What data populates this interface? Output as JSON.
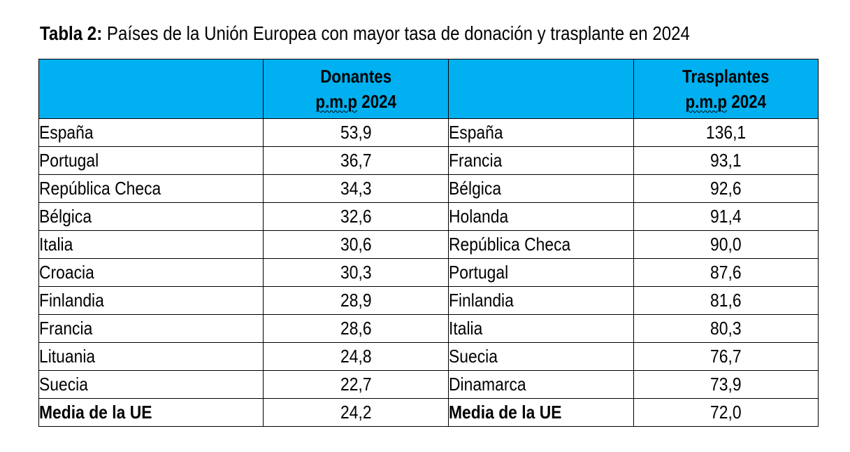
{
  "caption": {
    "label": "Tabla 2:",
    "text": "Países de la Unión Europea con mayor tasa de donación y trasplante en 2024"
  },
  "table": {
    "headers": {
      "donors_line1": "Donantes",
      "donors_abbr": "p.m.p",
      "donors_year": "2024",
      "transplants_line1": "Trasplantes",
      "transplants_abbr": "p.m.p",
      "transplants_year": "2024"
    },
    "header_color": "#00b0f0",
    "rows": [
      {
        "donor_country": "España",
        "donors": "53,9",
        "transplant_country": "España",
        "transplants": "136,1"
      },
      {
        "donor_country": "Portugal",
        "donors": "36,7",
        "transplant_country": "Francia",
        "transplants": "93,1"
      },
      {
        "donor_country": "República Checa",
        "donors": "34,3",
        "transplant_country": "Bélgica",
        "transplants": "92,6"
      },
      {
        "donor_country": "Bélgica",
        "donors": "32,6",
        "transplant_country": "Holanda",
        "transplants": "91,4"
      },
      {
        "donor_country": "Italia",
        "donors": "30,6",
        "transplant_country": "República Checa",
        "transplants": "90,0"
      },
      {
        "donor_country": "Croacia",
        "donors": "30,3",
        "transplant_country": "Portugal",
        "transplants": "87,6"
      },
      {
        "donor_country": "Finlandia",
        "donors": "28,9",
        "transplant_country": "Finlandia",
        "transplants": "81,6"
      },
      {
        "donor_country": "Francia",
        "donors": "28,6",
        "transplant_country": "Italia",
        "transplants": "80,3"
      },
      {
        "donor_country": "Lituania",
        "donors": "24,8",
        "transplant_country": "Suecia",
        "transplants": "76,7"
      },
      {
        "donor_country": "Suecia",
        "donors": "22,7",
        "transplant_country": "Dinamarca",
        "transplants": "73,9"
      }
    ],
    "average": {
      "donor_label": "Media de la UE",
      "donors": "24,2",
      "transplant_label": "Media de la UE",
      "transplants": "72,0"
    }
  }
}
